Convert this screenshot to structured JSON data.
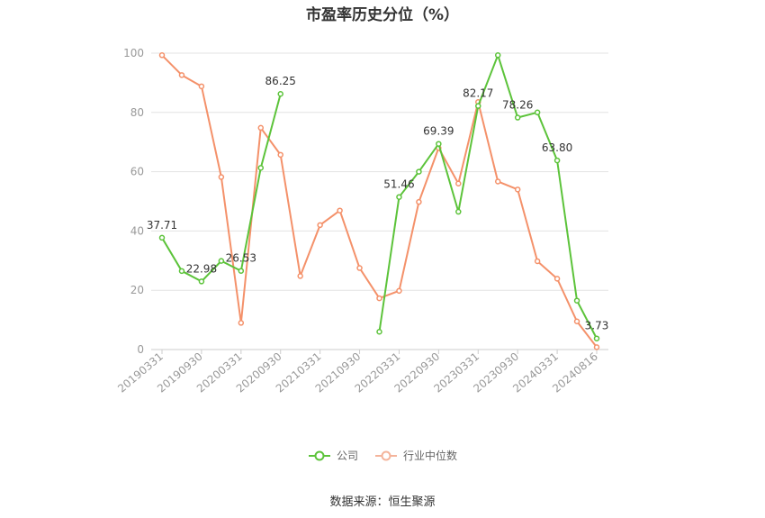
{
  "chart_data": {
    "type": "line",
    "title": "市盈率历史分位（%）",
    "x": [
      "20190331",
      "20190630",
      "20190930",
      "20191231",
      "20200331",
      "20200630",
      "20200930",
      "20201231",
      "20210331",
      "20210630",
      "20210930",
      "20211231",
      "20220331",
      "20220630",
      "20220930",
      "20221231",
      "20230331",
      "20230630",
      "20230930",
      "20231231",
      "20240331",
      "20240630",
      "20240816"
    ],
    "x_tick_labels": [
      "20190331",
      "20190930",
      "20200331",
      "20200930",
      "20210331",
      "20210930",
      "20220331",
      "20220930",
      "20230331",
      "20230930",
      "20240331",
      "20240816"
    ],
    "ylim": [
      0,
      100
    ],
    "y_ticks": [
      0,
      20,
      40,
      60,
      80,
      100
    ],
    "grid": true,
    "legend_position": "bottom",
    "series": [
      {
        "name": "公司",
        "color": "#5cc33a",
        "values": [
          37.71,
          26.5,
          22.98,
          29.9,
          26.53,
          61.3,
          86.25,
          null,
          null,
          null,
          null,
          6.0,
          51.46,
          60.0,
          69.39,
          46.5,
          82.17,
          99.3,
          78.26,
          80.0,
          63.8,
          16.5,
          3.73
        ],
        "labels": [
          "37.71",
          null,
          "22.98",
          null,
          "26.53",
          null,
          "86.25",
          null,
          null,
          null,
          null,
          null,
          "51.46",
          null,
          "69.39",
          null,
          "82.17",
          null,
          "78.26",
          null,
          "63.80",
          null,
          "3.73"
        ]
      },
      {
        "name": "行业中位数",
        "color": "#f4916a",
        "values": [
          99.3,
          92.6,
          88.8,
          58.2,
          9.0,
          74.8,
          65.7,
          24.8,
          42.0,
          46.9,
          27.5,
          17.3,
          19.8,
          49.8,
          68.0,
          56.0,
          83.5,
          56.7,
          54.0,
          29.8,
          23.9,
          9.5,
          0.8
        ]
      }
    ]
  },
  "legend": {
    "company": "公司",
    "industry": "行业中位数"
  },
  "source_text": "数据来源：恒生聚源"
}
